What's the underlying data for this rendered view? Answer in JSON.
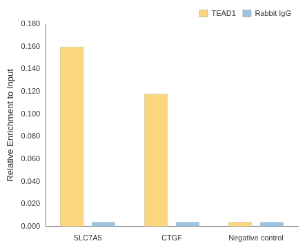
{
  "chart_data": {
    "type": "bar",
    "y_label": "Relative Enrichment to Input",
    "categories": [
      "SLC7A5",
      "CTGF",
      "Negative control"
    ],
    "series": [
      {
        "name": "TEAD1",
        "color": "#fcd67c",
        "values": [
          0.16,
          0.118,
          0.004
        ]
      },
      {
        "name": "Rabbit IgG",
        "color": "#9cc3e2",
        "values": [
          0.004,
          0.004,
          0.004
        ]
      }
    ],
    "ylim": [
      0,
      0.18
    ],
    "yticks": [
      {
        "value": 0,
        "label": "0.000"
      },
      {
        "value": 0.02,
        "label": "0.020"
      },
      {
        "value": 0.04,
        "label": "0.040"
      },
      {
        "value": 0.06,
        "label": "0.060"
      },
      {
        "value": 0.08,
        "label": "0.080"
      },
      {
        "value": 0.1,
        "label": "0.100"
      },
      {
        "value": 0.12,
        "label": "0.120"
      },
      {
        "value": 0.14,
        "label": "0.140"
      },
      {
        "value": 0.16,
        "label": "0.160"
      },
      {
        "value": 0.18,
        "label": "0.180"
      }
    ],
    "grid": false,
    "legend": "upper right"
  }
}
